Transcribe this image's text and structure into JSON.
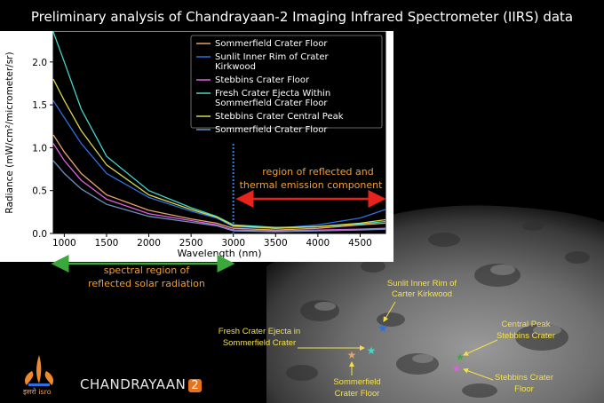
{
  "title": "Preliminary analysis of Chandrayaan-2 Imaging Infrared Spectrometer (IIRS) data",
  "logo": {
    "name": "CHANDRAYAAN",
    "number": "2",
    "isro_text": "इसरो isro"
  },
  "colors": {
    "panel_bg": "#ffffff",
    "reflected_arrow": "#e8231c",
    "solar_arrow": "#3aa83a",
    "annotation_text": "#f4e14a",
    "annotation_orange": "#f0a030"
  },
  "chart_data": {
    "type": "line",
    "xlabel": "Wavelength (nm)",
    "ylabel": "Radiance (mW/cm²/micrometer/sr)",
    "xlim": [
      870,
      4800
    ],
    "ylim": [
      0,
      2.35
    ],
    "xticks": [
      1000,
      1500,
      2000,
      2500,
      3000,
      3500,
      4000,
      4500
    ],
    "yticks": [
      0.0,
      0.5,
      1.0,
      1.5,
      2.0
    ],
    "xtick_labels": [
      "1000",
      "1500",
      "2000",
      "2500",
      "3000",
      "3500",
      "4000",
      "4500"
    ],
    "ytick_labels": [
      "0.0",
      "0.5",
      "1.0",
      "1.5",
      "2.0"
    ],
    "legend_position": "top-right",
    "series": [
      {
        "name": "Sommerfield Crater Floor",
        "color": "#e8a266",
        "x": [
          870,
          1000,
          1200,
          1500,
          2000,
          2500,
          2800,
          3000,
          3500,
          4000,
          4500,
          4800
        ],
        "y": [
          1.15,
          0.95,
          0.7,
          0.45,
          0.27,
          0.17,
          0.12,
          0.06,
          0.04,
          0.06,
          0.1,
          0.12
        ]
      },
      {
        "name": "Sunlit Inner Rim of Crater Kirkwood",
        "color": "#2f6fe0",
        "x": [
          870,
          1000,
          1200,
          1500,
          2000,
          2500,
          2800,
          3000,
          3500,
          4000,
          4500,
          4800
        ],
        "y": [
          1.55,
          1.35,
          1.05,
          0.7,
          0.42,
          0.26,
          0.18,
          0.08,
          0.06,
          0.1,
          0.18,
          0.28
        ]
      },
      {
        "name": "Stebbins Crater Floor",
        "color": "#e060e0",
        "x": [
          870,
          1000,
          1200,
          1500,
          2000,
          2500,
          2800,
          3000,
          3500,
          4000,
          4500,
          4800
        ],
        "y": [
          1.05,
          0.85,
          0.62,
          0.4,
          0.23,
          0.15,
          0.1,
          0.04,
          0.03,
          0.04,
          0.05,
          0.06
        ]
      },
      {
        "name": "Fresh Crater Ejecta Within Sommerfield Crater Floor",
        "color": "#40d8c8",
        "x": [
          870,
          1000,
          1200,
          1500,
          2000,
          2500,
          2800,
          3000,
          3500,
          4000,
          4500,
          4800
        ],
        "y": [
          2.35,
          2.0,
          1.45,
          0.9,
          0.5,
          0.3,
          0.2,
          0.1,
          0.07,
          0.08,
          0.11,
          0.14
        ]
      },
      {
        "name": "Stebbins Crater Central Peak",
        "color": "#d8d848",
        "x": [
          870,
          1000,
          1200,
          1500,
          2000,
          2500,
          2800,
          3000,
          3500,
          4000,
          4500,
          4800
        ],
        "y": [
          1.8,
          1.55,
          1.2,
          0.8,
          0.45,
          0.28,
          0.19,
          0.09,
          0.06,
          0.08,
          0.12,
          0.16
        ]
      },
      {
        "name": "Sommerfield Crater Floor",
        "color": "#6a90c0",
        "x": [
          870,
          1000,
          1200,
          1500,
          2000,
          2500,
          2800,
          3000,
          3500,
          4000,
          4500,
          4800
        ],
        "y": [
          0.85,
          0.7,
          0.52,
          0.34,
          0.2,
          0.13,
          0.09,
          0.03,
          0.02,
          0.03,
          0.04,
          0.05
        ]
      }
    ],
    "annotations": {
      "reflected_region": [
        "region of reflected and",
        "thermal emission component"
      ],
      "solar_region": [
        "spectral region of",
        "reflected solar radiation"
      ]
    }
  },
  "map_labels": {
    "kirkwood": [
      "Sunlit Inner Rim of",
      "Carter Kirkwood"
    ],
    "ejecta": [
      "Fresh Crater Ejecta in",
      "Sommerfield Crater"
    ],
    "central_peak": [
      "Central Peak",
      "Stebbins Crater"
    ],
    "stebbins_floor": [
      "Stebbins Crater",
      "Floor"
    ],
    "sommerfield_floor": [
      "Sommerfield",
      "Crater Floor"
    ]
  }
}
